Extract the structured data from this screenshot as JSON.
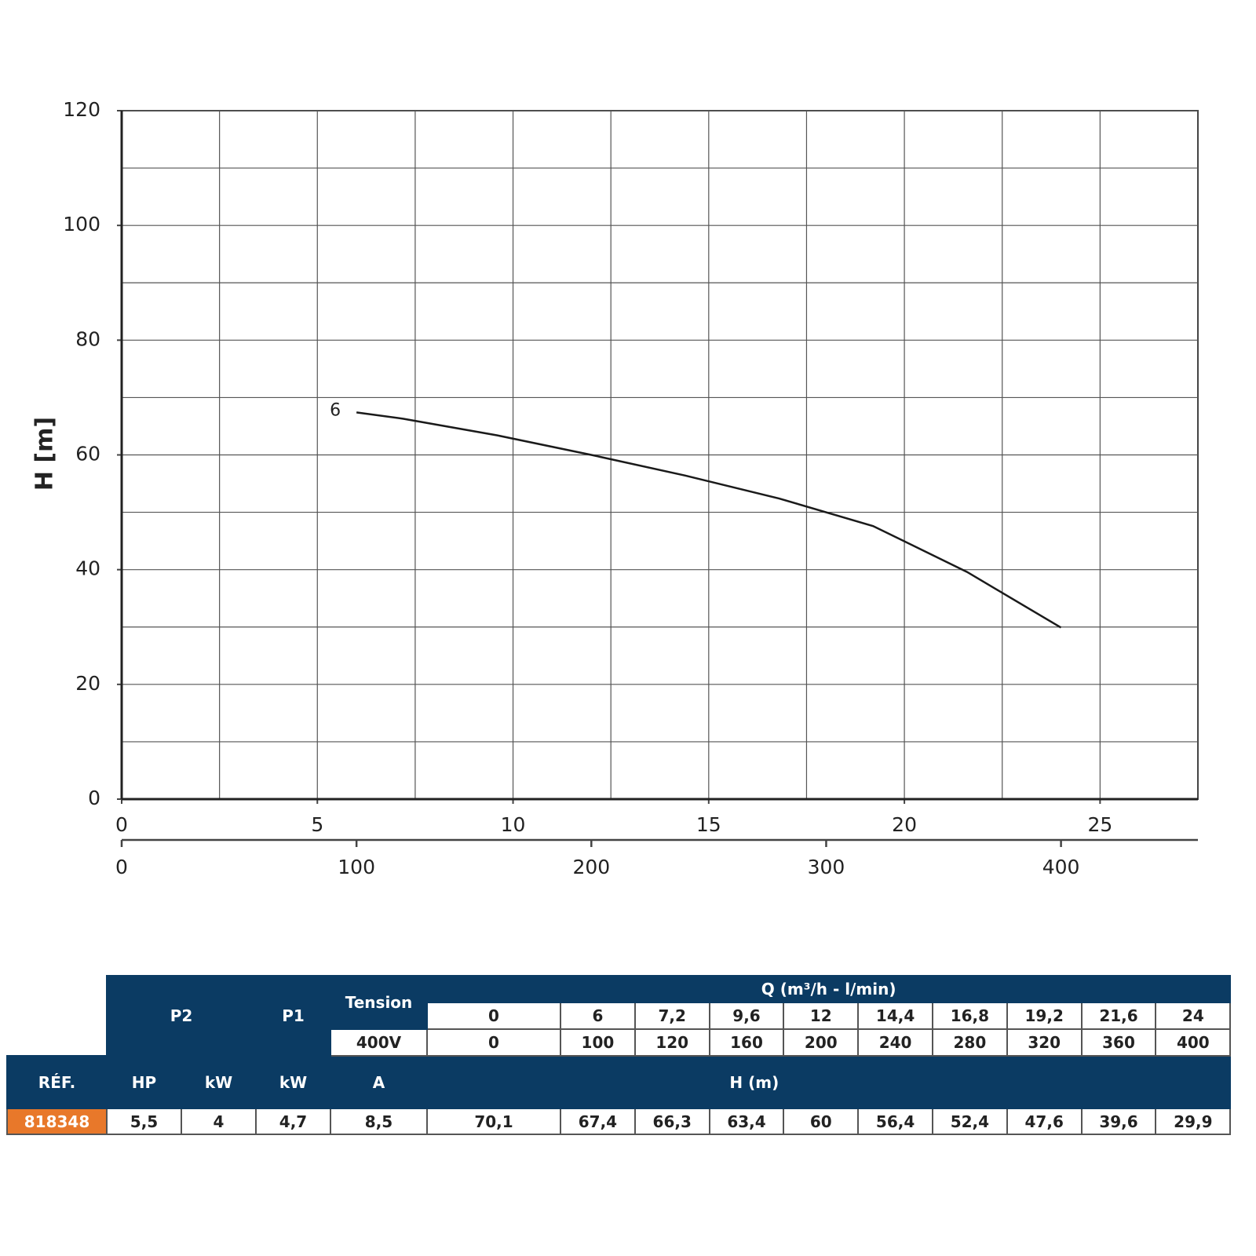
{
  "chart_data": {
    "type": "line",
    "y_label": "H [m]",
    "x": [
      6,
      7.2,
      9.6,
      12,
      14.4,
      16.8,
      19.2,
      21.6,
      24
    ],
    "series": [
      {
        "name": "6",
        "color": "#1a1a1a",
        "values": [
          67.4,
          66.3,
          63.4,
          60,
          56.4,
          52.4,
          47.6,
          39.6,
          29.9
        ]
      }
    ],
    "xlim": [
      0,
      27.5
    ],
    "xticks": [
      0,
      5,
      10,
      15,
      20,
      25
    ],
    "x2lim": [
      0,
      458.3
    ],
    "x2ticks": [
      0,
      100,
      200,
      300,
      400
    ],
    "ylim": [
      0,
      120
    ],
    "yticks": [
      0,
      20,
      40,
      60,
      80,
      100,
      120
    ],
    "grid": true
  },
  "table": {
    "p2": "P2",
    "p1": "P1",
    "tension": "Tension",
    "voltage": "400V",
    "q_header": "Q (m³/h - l/min)",
    "q_m3h": [
      "0",
      "6",
      "7,2",
      "9,6",
      "12",
      "14,4",
      "16,8",
      "19,2",
      "21,6",
      "24"
    ],
    "q_lmin": [
      "0",
      "100",
      "120",
      "160",
      "200",
      "240",
      "280",
      "320",
      "360",
      "400"
    ],
    "headers": [
      "RÉF.",
      "HP",
      "kW",
      "kW",
      "A"
    ],
    "h_header": "H (m)",
    "rows": [
      [
        "818348",
        "5,5",
        "4",
        "4,7",
        "8,5",
        "70,1",
        "67,4",
        "66,3",
        "63,4",
        "60",
        "56,4",
        "52,4",
        "47,6",
        "39,6",
        "29,9"
      ]
    ]
  }
}
